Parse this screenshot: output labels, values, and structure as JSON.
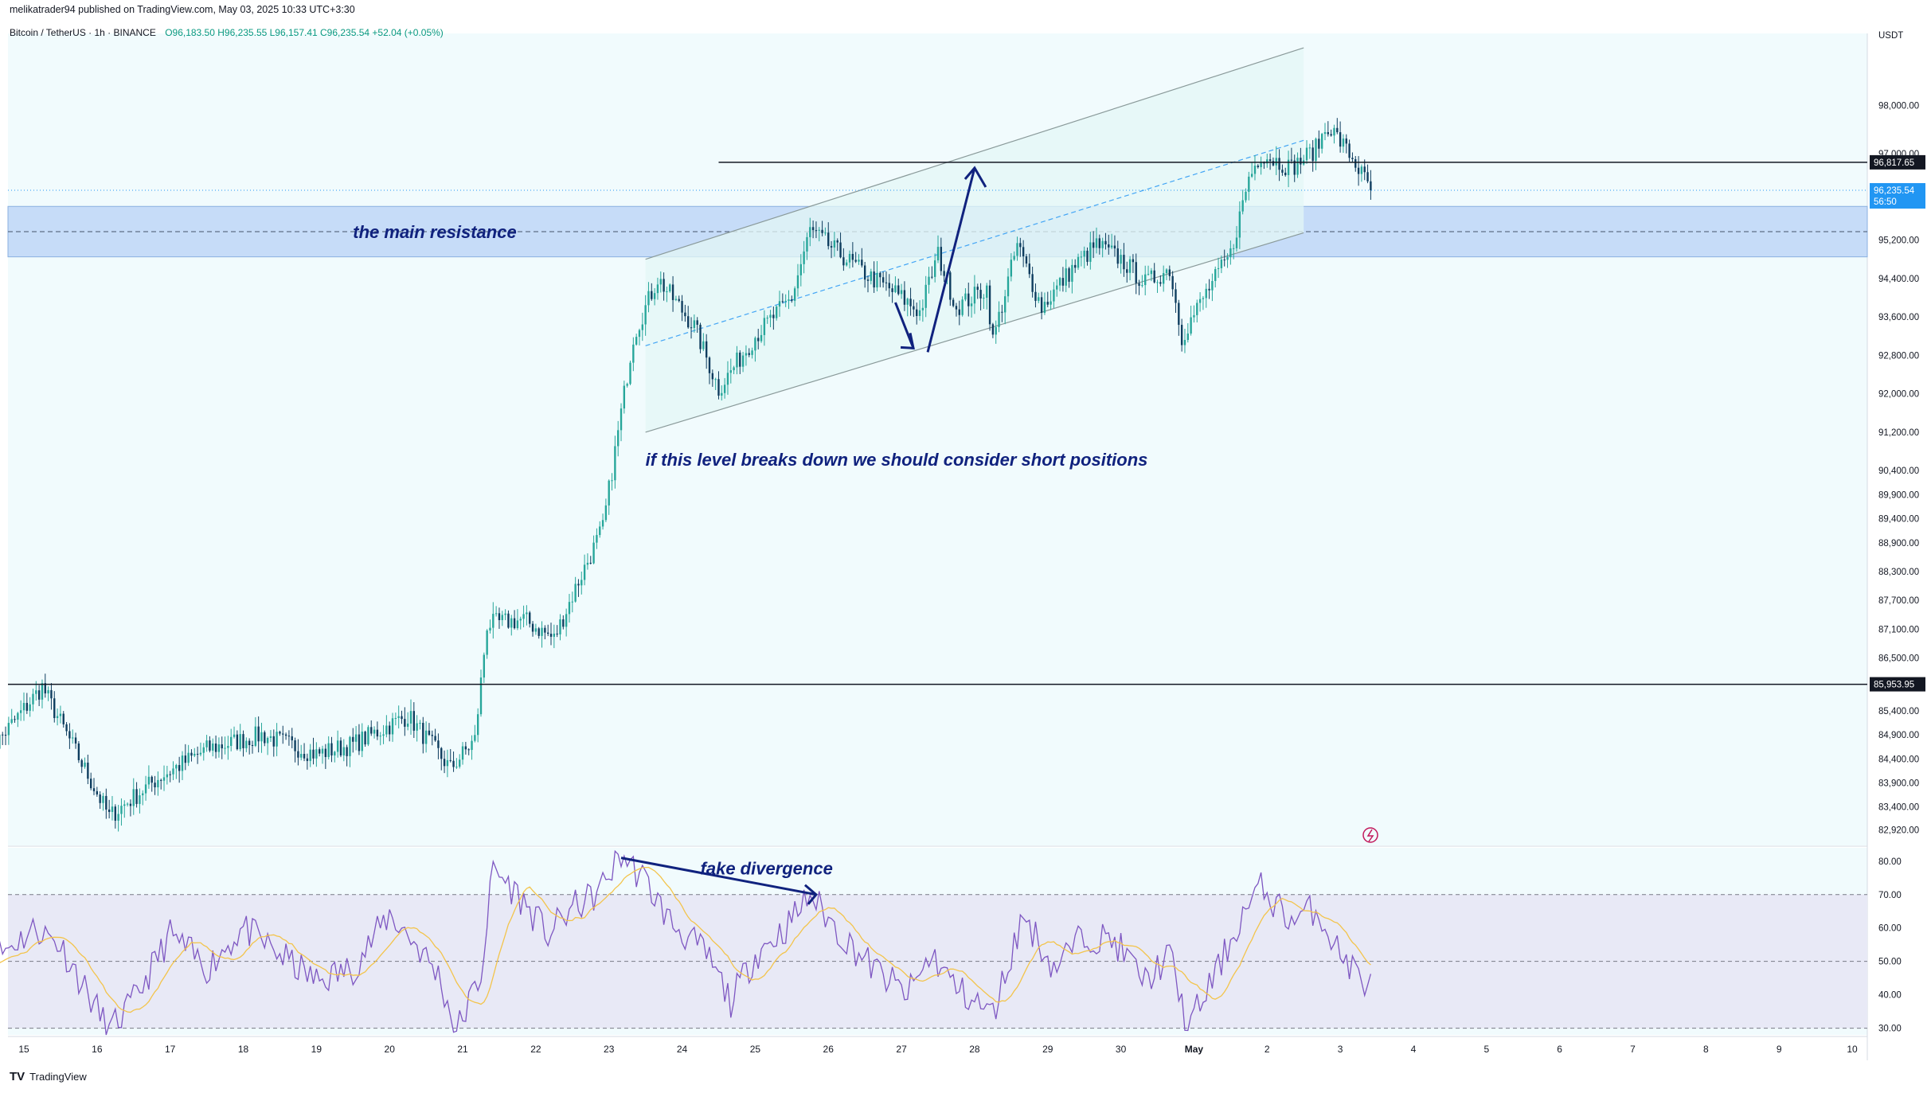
{
  "header": {
    "publisher": "melikatrader94 published on TradingView.com, May 03, 2025 10:33 UTC+3:30",
    "symbol": "Bitcoin / TetherUS · 1h · BINANCE",
    "ohlc": "O96,183.50 H96,235.55 L96,157.41 C96,235.54 +52.04 (+0.05%)"
  },
  "footer": {
    "brand": "TradingView"
  },
  "colors": {
    "background": "#f1fbfd",
    "up": "#26a69a",
    "down": "#0d3c5e",
    "resistance_zone": "#c6dcf8",
    "channel_fill": "#e3f7f6",
    "rsi_line": "#7e57c2",
    "rsi_ma": "#f3c44b",
    "rsi_band": "#e8e9f6",
    "annotation": "#10227e",
    "price_tag": "#2196f3",
    "line_tag": "#131722"
  },
  "chart_data": [
    {
      "type": "candlestick",
      "quote_currency": "USDT",
      "ylim": [
        82600,
        99500
      ],
      "y_ticks": [
        98000,
        97000,
        95200,
        94400,
        93600,
        92800,
        92000,
        91200,
        90400,
        89900,
        89400,
        88900,
        88300,
        87700,
        87100,
        86500,
        85400,
        84900,
        84400,
        83900,
        83400,
        82920
      ],
      "x_tick_labels": [
        "15",
        "16",
        "17",
        "18",
        "19",
        "20",
        "21",
        "22",
        "23",
        "24",
        "25",
        "26",
        "27",
        "28",
        "29",
        "30",
        "May",
        "2",
        "3",
        "4",
        "5",
        "6",
        "7",
        "8",
        "9",
        "10"
      ],
      "last_price": {
        "value": 96235.54,
        "label": "96,235.54",
        "countdown": "56:50"
      },
      "horizontal_lines": [
        {
          "value": 96817.65,
          "label": "96,817.65"
        },
        {
          "value": 85953.95,
          "label": "85,953.95"
        }
      ],
      "resistance_zone": [
        94850,
        95900
      ],
      "channel": {
        "upper": [
          [
            "Apr 23 12:00",
            94800
          ],
          [
            "May 2 12:00",
            99200
          ]
        ],
        "lower": [
          [
            "Apr 23 12:00",
            91200
          ],
          [
            "May 2 12:00",
            95350
          ]
        ]
      },
      "annotations": [
        {
          "text": "the main resistance"
        },
        {
          "text": "if this level breaks down we should consider short positions"
        }
      ],
      "anchors": [
        {
          "date": "Apr 14 12:00",
          "price": 84500
        },
        {
          "date": "Apr 15 06:00",
          "price": 85900
        },
        {
          "date": "Apr 16 04:00",
          "price": 83200
        },
        {
          "date": "Apr 16 20:00",
          "price": 84000
        },
        {
          "date": "Apr 17 12:00",
          "price": 84600
        },
        {
          "date": "Apr 18 06:00",
          "price": 84900
        },
        {
          "date": "Apr 19 00:00",
          "price": 84500
        },
        {
          "date": "Apr 19 12:00",
          "price": 84700
        },
        {
          "date": "Apr 20 06:00",
          "price": 85300
        },
        {
          "date": "Apr 20 20:00",
          "price": 84200
        },
        {
          "date": "Apr 21 04:00",
          "price": 84800
        },
        {
          "date": "Apr 21 08:00",
          "price": 87200
        },
        {
          "date": "Apr 21 20:00",
          "price": 87300
        },
        {
          "date": "Apr 22 06:00",
          "price": 86900
        },
        {
          "date": "Apr 22 14:00",
          "price": 88100
        },
        {
          "date": "Apr 22 22:00",
          "price": 89200
        },
        {
          "date": "Apr 23 08:00",
          "price": 93200
        },
        {
          "date": "Apr 23 16:00",
          "price": 94400
        },
        {
          "date": "Apr 24 04:00",
          "price": 93400
        },
        {
          "date": "Apr 24 12:00",
          "price": 92100
        },
        {
          "date": "Apr 25 00:00",
          "price": 93200
        },
        {
          "date": "Apr 25 12:00",
          "price": 94000
        },
        {
          "date": "Apr 25 18:00",
          "price": 95400
        },
        {
          "date": "Apr 26 12:00",
          "price": 94500
        },
        {
          "date": "Apr 26 22:00",
          "price": 94100
        },
        {
          "date": "Apr 27 06:00",
          "price": 93700
        },
        {
          "date": "Apr 27 12:00",
          "price": 94900
        },
        {
          "date": "Apr 27 18:00",
          "price": 93800
        },
        {
          "date": "Apr 28 04:00",
          "price": 94200
        },
        {
          "date": "Apr 28 06:00",
          "price": 93100
        },
        {
          "date": "Apr 28 14:00",
          "price": 95100
        },
        {
          "date": "Apr 28 22:00",
          "price": 93800
        },
        {
          "date": "Apr 29 08:00",
          "price": 94600
        },
        {
          "date": "Apr 29 16:00",
          "price": 95100
        },
        {
          "date": "Apr 30 00:00",
          "price": 94800
        },
        {
          "date": "Apr 30 08:00",
          "price": 94300
        },
        {
          "date": "Apr 30 16:00",
          "price": 94600
        },
        {
          "date": "Apr 30 20:00",
          "price": 93200
        },
        {
          "date": "May 1 04:00",
          "price": 94100
        },
        {
          "date": "May 1 12:00",
          "price": 94900
        },
        {
          "date": "May 1 18:00",
          "price": 96500
        },
        {
          "date": "May 1 22:00",
          "price": 97000
        },
        {
          "date": "May 2 08:00",
          "price": 96700
        },
        {
          "date": "May 2 16:00",
          "price": 97100
        },
        {
          "date": "May 2 20:00",
          "price": 97600
        },
        {
          "date": "May 3 04:00",
          "price": 96900
        },
        {
          "date": "May 3 10:00",
          "price": 96236
        }
      ]
    },
    {
      "type": "line",
      "ylim": [
        28,
        84
      ],
      "y_ticks": [
        80,
        70,
        60,
        50,
        40,
        30
      ],
      "y_tick_labels": [
        "80.00",
        "70.00",
        "60.00",
        "50.00",
        "40.00",
        "30.00"
      ],
      "levels": [
        70,
        50,
        30
      ],
      "annotations": [
        {
          "text": "fake divergence"
        }
      ],
      "anchors": [
        {
          "date": "Apr 14 12:00",
          "value": 50
        },
        {
          "date": "Apr 15 04:00",
          "value": 60
        },
        {
          "date": "Apr 15 12:00",
          "value": 55
        },
        {
          "date": "Apr 15 20:00",
          "value": 42
        },
        {
          "date": "Apr 16 04:00",
          "value": 29
        },
        {
          "date": "Apr 16 12:00",
          "value": 38
        },
        {
          "date": "Apr 17 00:00",
          "value": 58
        },
        {
          "date": "Apr 17 12:00",
          "value": 48
        },
        {
          "date": "Apr 18 00:00",
          "value": 60
        },
        {
          "date": "Apr 18 12:00",
          "value": 52
        },
        {
          "date": "Apr 19 00:00",
          "value": 44
        },
        {
          "date": "Apr 19 12:00",
          "value": 48
        },
        {
          "date": "Apr 20 00:00",
          "value": 64
        },
        {
          "date": "Apr 20 08:00",
          "value": 56
        },
        {
          "date": "Apr 20 16:00",
          "value": 46
        },
        {
          "date": "Apr 20 22:00",
          "value": 29
        },
        {
          "date": "Apr 21 06:00",
          "value": 46
        },
        {
          "date": "Apr 21 10:00",
          "value": 78
        },
        {
          "date": "Apr 21 18:00",
          "value": 70
        },
        {
          "date": "Apr 22 04:00",
          "value": 58
        },
        {
          "date": "Apr 22 12:00",
          "value": 66
        },
        {
          "date": "Apr 22 20:00",
          "value": 70
        },
        {
          "date": "Apr 23 04:00",
          "value": 82
        },
        {
          "date": "Apr 23 12:00",
          "value": 74
        },
        {
          "date": "Apr 23 20:00",
          "value": 62
        },
        {
          "date": "Apr 24 08:00",
          "value": 52
        },
        {
          "date": "Apr 24 16:00",
          "value": 38
        },
        {
          "date": "Apr 25 00:00",
          "value": 52
        },
        {
          "date": "Apr 25 10:00",
          "value": 60
        },
        {
          "date": "Apr 25 18:00",
          "value": 70
        },
        {
          "date": "Apr 26 04:00",
          "value": 58
        },
        {
          "date": "Apr 26 16:00",
          "value": 47
        },
        {
          "date": "Apr 27 02:00",
          "value": 40
        },
        {
          "date": "Apr 27 10:00",
          "value": 52
        },
        {
          "date": "Apr 27 18:00",
          "value": 42
        },
        {
          "date": "Apr 28 06:00",
          "value": 34
        },
        {
          "date": "Apr 28 16:00",
          "value": 64
        },
        {
          "date": "Apr 29 02:00",
          "value": 48
        },
        {
          "date": "Apr 29 12:00",
          "value": 58
        },
        {
          "date": "Apr 29 22:00",
          "value": 56
        },
        {
          "date": "Apr 30 08:00",
          "value": 44
        },
        {
          "date": "Apr 30 16:00",
          "value": 52
        },
        {
          "date": "Apr 30 22:00",
          "value": 30
        },
        {
          "date": "May 1 08:00",
          "value": 48
        },
        {
          "date": "May 1 16:00",
          "value": 64
        },
        {
          "date": "May 1 22:00",
          "value": 72
        },
        {
          "date": "May 2 08:00",
          "value": 62
        },
        {
          "date": "May 2 16:00",
          "value": 66
        },
        {
          "date": "May 3 00:00",
          "value": 52
        },
        {
          "date": "May 3 10:00",
          "value": 42
        }
      ]
    }
  ]
}
